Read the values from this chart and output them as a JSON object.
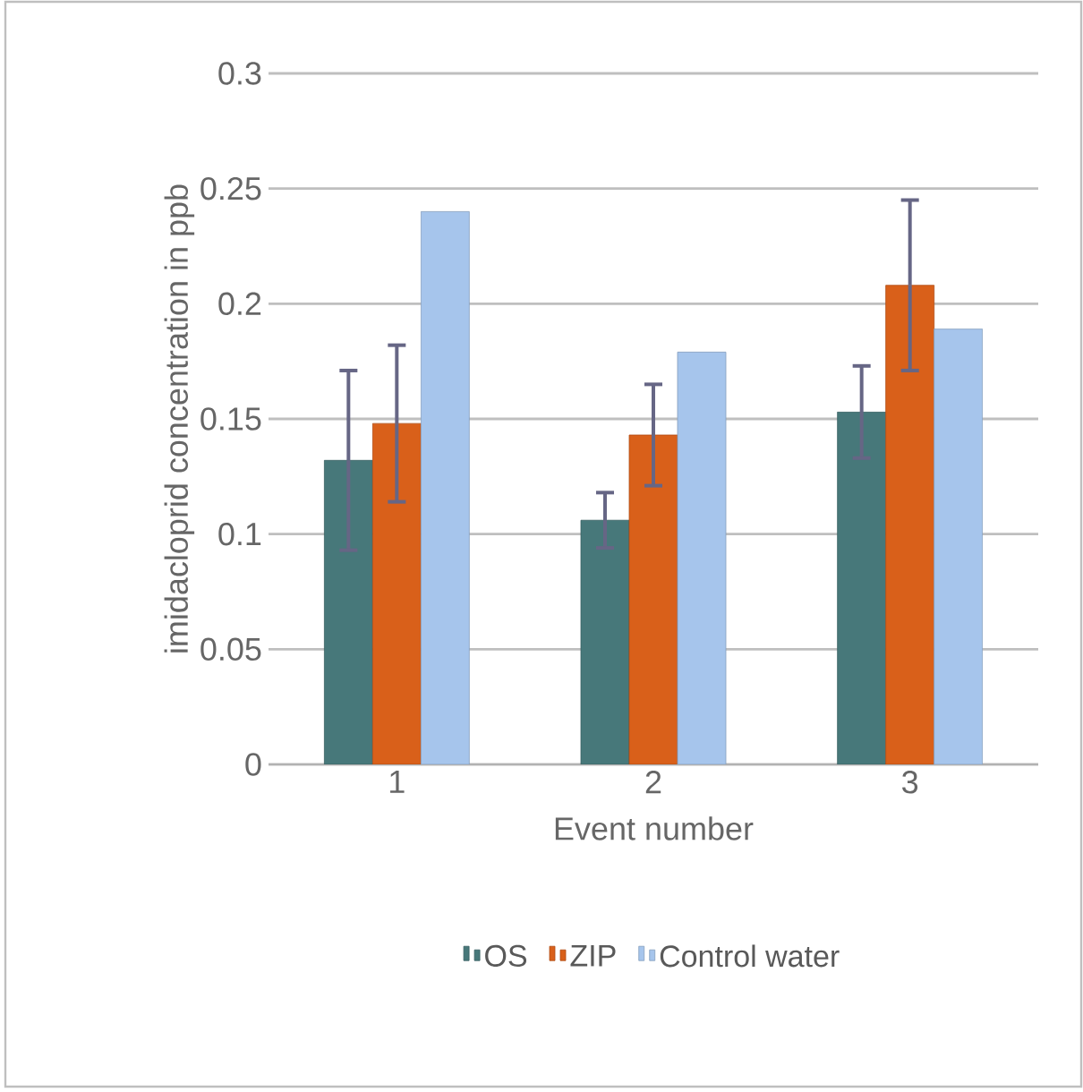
{
  "chart_data": {
    "type": "bar",
    "xlabel": "Event number",
    "ylabel": "imidacloprid concentration in ppb",
    "categories": [
      "1",
      "2",
      "3"
    ],
    "series": [
      {
        "name": "OS",
        "color": "#47787a",
        "values": [
          0.132,
          0.106,
          0.153
        ],
        "errors": [
          0.039,
          0.012,
          0.02
        ]
      },
      {
        "name": "ZIP",
        "color": "#d9601a",
        "values": [
          0.148,
          0.143,
          0.208
        ],
        "errors": [
          0.034,
          0.022,
          0.037
        ]
      },
      {
        "name": "Control water",
        "color": "#a6c5ec",
        "values": [
          0.24,
          0.179,
          0.189
        ]
      }
    ],
    "ylim": [
      0,
      0.3
    ],
    "yticks": [
      0,
      0.05,
      0.1,
      0.15,
      0.2,
      0.25,
      0.3
    ],
    "grid": "y",
    "legend": "bottom"
  }
}
